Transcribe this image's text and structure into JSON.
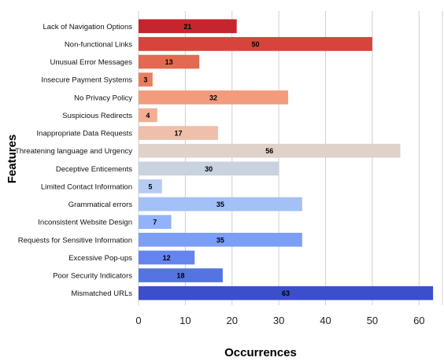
{
  "chart_data": {
    "type": "bar",
    "orientation": "horizontal",
    "xlabel": "Occurrences",
    "ylabel": "Features",
    "xlim": [
      0,
      65
    ],
    "xticks": [
      0,
      10,
      20,
      30,
      40,
      50,
      60
    ],
    "grid": true,
    "categories": [
      "Lack of Navigation Options",
      "Non-functional Links",
      "Unusual Error Messages",
      "Insecure Payment Systems",
      "No Privacy Policy",
      "Suspicious Redirects",
      "Inappropriate Data Requests",
      "Threatening language and Urgency",
      "Deceptive Enticements",
      "Limited Contact Information",
      "Grammatical errors",
      "Inconsistent Website Design",
      "Requests for Sensitive Information",
      "Excessive Pop-ups",
      "Poor Security Indicators",
      "Mismatched URLs"
    ],
    "values": [
      21,
      50,
      13,
      3,
      32,
      4,
      17,
      56,
      30,
      5,
      35,
      7,
      35,
      12,
      18,
      63
    ],
    "colors": [
      "#c5252d",
      "#d6443b",
      "#e36a51",
      "#ea7d60",
      "#f29c7d",
      "#f3ae93",
      "#efbfaa",
      "#e0d2c8",
      "#c9d2df",
      "#b5cbf3",
      "#a4c0f9",
      "#92b2fb",
      "#7c9ef6",
      "#6585ee",
      "#5474e0",
      "#3b4fcb"
    ]
  }
}
